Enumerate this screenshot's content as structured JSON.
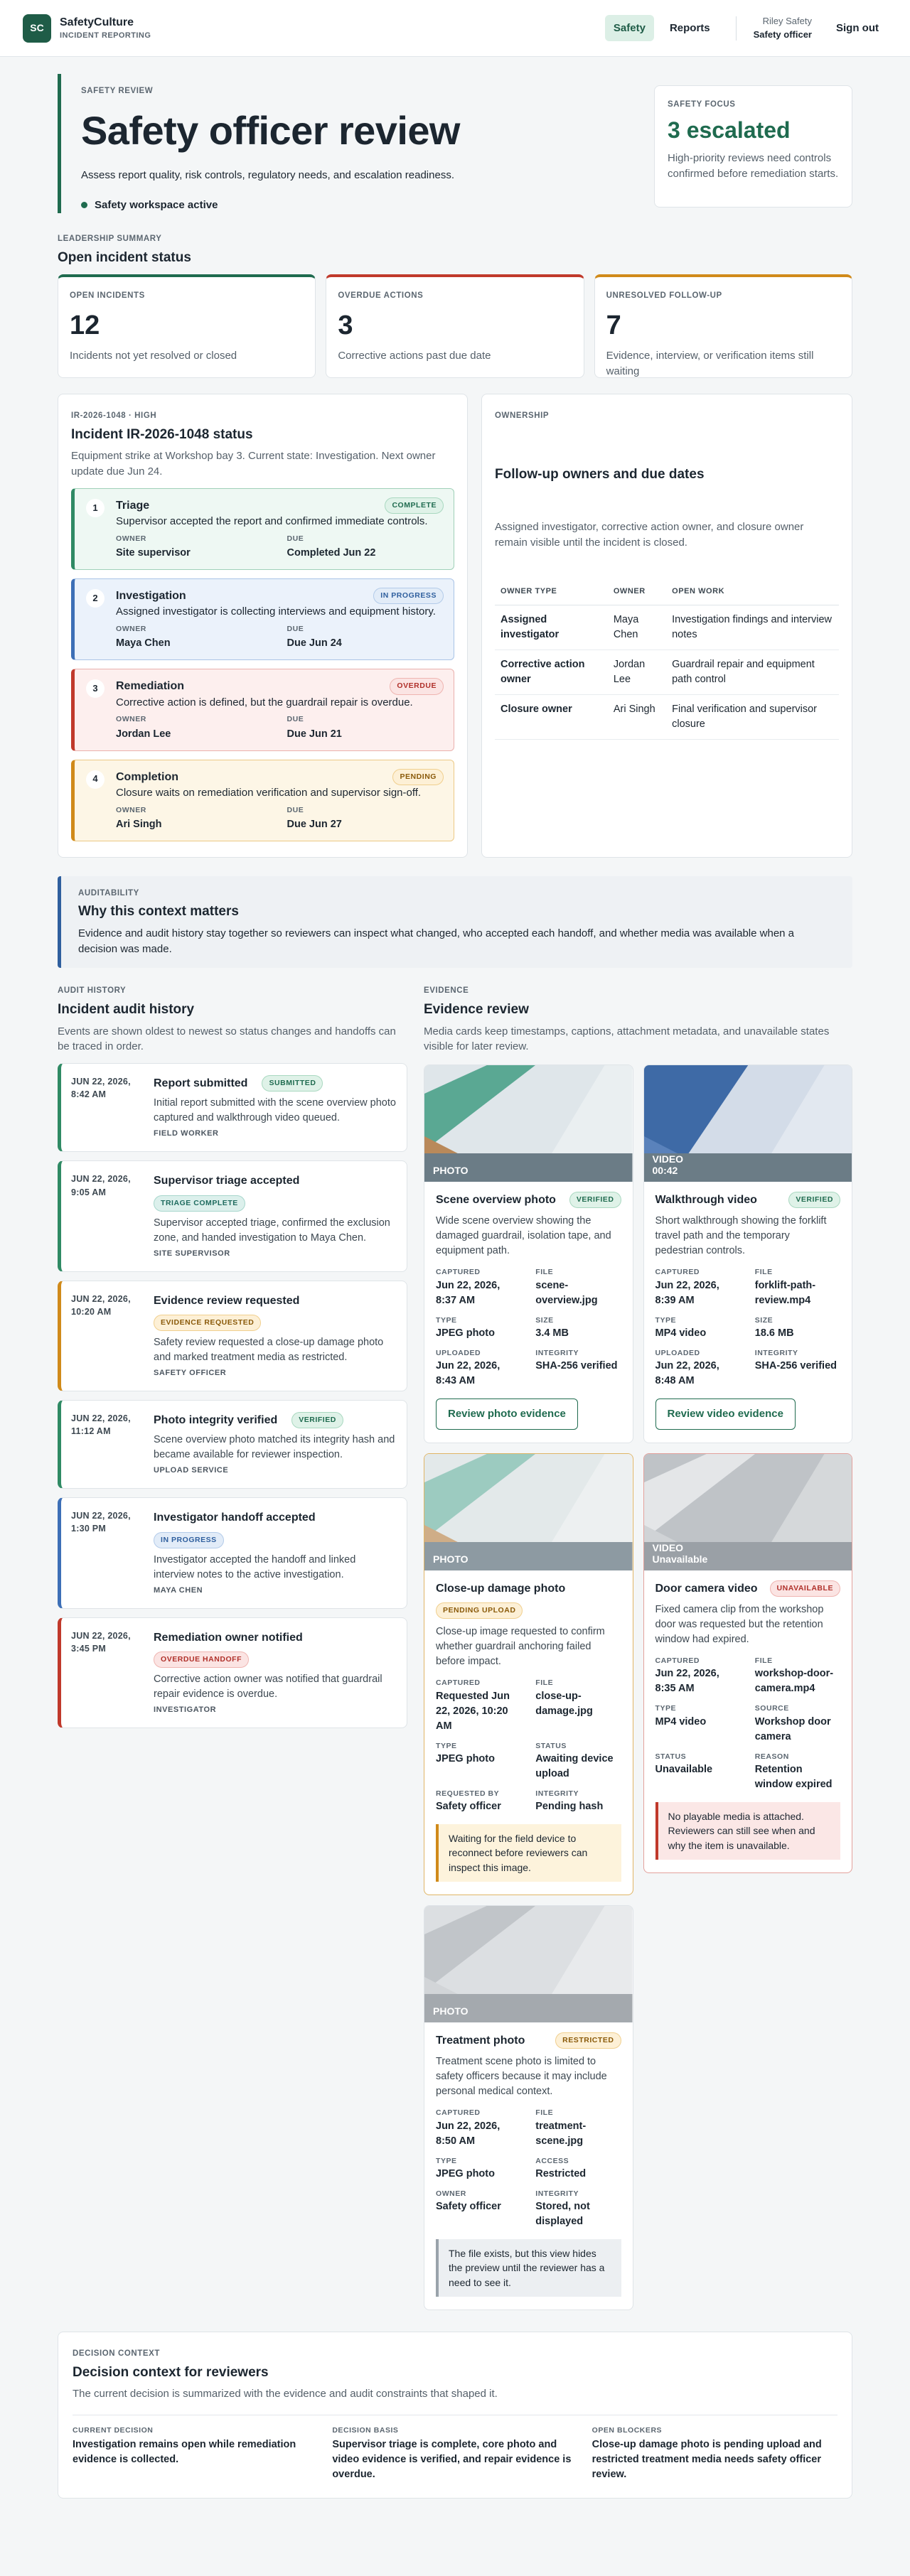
{
  "header": {
    "logo": "SC",
    "brand": "SafetyCulture",
    "subtitle": "INCIDENT REPORTING",
    "nav": [
      "Safety",
      "Reports"
    ],
    "user_name": "Riley Safety",
    "user_role": "Safety officer",
    "sign_out": "Sign out"
  },
  "hero": {
    "eyebrow": "SAFETY REVIEW",
    "title": "Safety officer review",
    "description": "Assess report quality, risk controls, regulatory needs, and escalation readiness.",
    "status": "Safety workspace active"
  },
  "focus": {
    "eyebrow": "SAFETY FOCUS",
    "title": "3 escalated",
    "text": "High-priority reviews need controls confirmed before remediation starts."
  },
  "summary": {
    "eyebrow": "LEADERSHIP SUMMARY",
    "title": "Open incident status",
    "cards": [
      {
        "label": "OPEN INCIDENTS",
        "value": 12,
        "text": "Incidents not yet resolved or closed"
      },
      {
        "label": "OVERDUE ACTIONS",
        "value": 3,
        "text": "Corrective actions past due date"
      },
      {
        "label": "UNRESOLVED FOLLOW-UP",
        "value": 7,
        "text": "Evidence, interview, or verification items still waiting"
      }
    ]
  },
  "incident": {
    "eyebrow": "IR-2026-1048 · HIGH",
    "title": "Incident IR-2026-1048 status",
    "description": "Equipment strike at Workshop bay 3. Current state: Investigation. Next owner update due Jun 24.",
    "steps": [
      {
        "num": 1,
        "title": "Triage",
        "badge": "COMPLETE",
        "text": "Supervisor accepted the report and confirmed immediate controls.",
        "owner_label": "OWNER",
        "owner": "Site supervisor",
        "due_label": "DUE",
        "due": "Completed Jun 22"
      },
      {
        "num": 2,
        "title": "Investigation",
        "badge": "IN PROGRESS",
        "text": "Assigned investigator is collecting interviews and equipment history.",
        "owner_label": "OWNER",
        "owner": "Maya Chen",
        "due_label": "DUE",
        "due": "Due Jun 24"
      },
      {
        "num": 3,
        "title": "Remediation",
        "badge": "OVERDUE",
        "text": "Corrective action is defined, but the guardrail repair is overdue.",
        "owner_label": "OWNER",
        "owner": "Jordan Lee",
        "due_label": "DUE",
        "due": "Due Jun 21"
      },
      {
        "num": 4,
        "title": "Completion",
        "badge": "PENDING",
        "text": "Closure waits on remediation verification and supervisor sign-off.",
        "owner_label": "OWNER",
        "owner": "Ari Singh",
        "due_label": "DUE",
        "due": "Due Jun 27"
      }
    ]
  },
  "ownership": {
    "eyebrow": "OWNERSHIP",
    "title": "Follow-up owners and due dates",
    "description": "Assigned investigator, corrective action owner, and closure owner remain visible until the incident is closed.",
    "columns": [
      "OWNER TYPE",
      "OWNER",
      "OPEN WORK"
    ],
    "rows": [
      [
        "Assigned investigator",
        "Maya Chen",
        "Investigation findings and interview notes"
      ],
      [
        "Corrective action owner",
        "Jordan Lee",
        "Guardrail repair and equipment path control"
      ],
      [
        "Closure owner",
        "Ari Singh",
        "Final verification and supervisor closure"
      ]
    ]
  },
  "auditability": {
    "eyebrow": "AUDITABILITY",
    "title": "Why this context matters",
    "text": "Evidence and audit history stay together so reviewers can inspect what changed, who accepted each handoff, and whether media was available when a decision was made."
  },
  "audit": {
    "eyebrow": "AUDIT HISTORY",
    "title": "Incident audit history",
    "description": "Events are shown oldest to newest so status changes and handoffs can be traced in order.",
    "events": [
      {
        "date": "JUN 22, 2026, 8:42 AM",
        "title": "Report submitted",
        "badge": "SUBMITTED",
        "text": "Initial report submitted with the scene overview photo captured and walkthrough video queued.",
        "actor": "FIELD WORKER"
      },
      {
        "date": "JUN 22, 2026, 9:05 AM",
        "title": "Supervisor triage accepted",
        "badge": "TRIAGE COMPLETE",
        "text": "Supervisor accepted triage, confirmed the exclusion zone, and handed investigation to Maya Chen.",
        "actor": "SITE SUPERVISOR"
      },
      {
        "date": "JUN 22, 2026, 10:20 AM",
        "title": "Evidence review requested",
        "badge": "EVIDENCE REQUESTED",
        "text": "Safety review requested a close-up damage photo and marked treatment media as restricted.",
        "actor": "SAFETY OFFICER"
      },
      {
        "date": "JUN 22, 2026, 11:12 AM",
        "title": "Photo integrity verified",
        "badge": "VERIFIED",
        "text": "Scene overview photo matched its integrity hash and became available for reviewer inspection.",
        "actor": "UPLOAD SERVICE"
      },
      {
        "date": "JUN 22, 2026, 1:30 PM",
        "title": "Investigator handoff accepted",
        "badge": "IN PROGRESS",
        "text": "Investigator accepted the handoff and linked interview notes to the active investigation.",
        "actor": "MAYA CHEN"
      },
      {
        "date": "JUN 22, 2026, 3:45 PM",
        "title": "Remediation owner notified",
        "badge": "OVERDUE HANDOFF",
        "text": "Corrective action owner was notified that guardrail repair evidence is overdue.",
        "actor": "INVESTIGATOR"
      }
    ]
  },
  "evidence": {
    "eyebrow": "EVIDENCE",
    "title": "Evidence review",
    "description": "Media cards keep timestamps, captions, attachment metadata, and unavailable states visible for later review.",
    "items": [
      {
        "media": [
          "PHOTO"
        ],
        "title": "Scene overview photo",
        "badge": "VERIFIED",
        "text": "Wide scene overview showing the damaged guardrail, isolation tape, and equipment path.",
        "fields": [
          {
            "label": "CAPTURED",
            "value": "Jun 22, 2026, 8:37 AM"
          },
          {
            "label": "FILE",
            "value": "scene-overview.jpg"
          },
          {
            "label": "TYPE",
            "value": "JPEG photo"
          },
          {
            "label": "SIZE",
            "value": "3.4 MB"
          },
          {
            "label": "UPLOADED",
            "value": "Jun 22, 2026, 8:43 AM"
          },
          {
            "label": "INTEGRITY",
            "value": "SHA-256 verified"
          }
        ],
        "button": "Review photo evidence"
      },
      {
        "media": [
          "VIDEO",
          "00:42"
        ],
        "title": "Walkthrough video",
        "badge": "VERIFIED",
        "text": "Short walkthrough showing the forklift travel path and the temporary pedestrian controls.",
        "fields": [
          {
            "label": "CAPTURED",
            "value": "Jun 22, 2026, 8:39 AM"
          },
          {
            "label": "FILE",
            "value": "forklift-path-review.mp4"
          },
          {
            "label": "TYPE",
            "value": "MP4 video"
          },
          {
            "label": "SIZE",
            "value": "18.6 MB"
          },
          {
            "label": "UPLOADED",
            "value": "Jun 22, 2026, 8:48 AM"
          },
          {
            "label": "INTEGRITY",
            "value": "SHA-256 verified"
          }
        ],
        "button": "Review video evidence"
      },
      {
        "media": [
          "PHOTO"
        ],
        "title": "Close-up damage photo",
        "badge": "PENDING UPLOAD",
        "text": "Close-up image requested to confirm whether guardrail anchoring failed before impact.",
        "fields": [
          {
            "label": "CAPTURED",
            "value": "Requested Jun 22, 2026, 10:20 AM"
          },
          {
            "label": "FILE",
            "value": "close-up-damage.jpg"
          },
          {
            "label": "TYPE",
            "value": "JPEG photo"
          },
          {
            "label": "STATUS",
            "value": "Awaiting device upload"
          },
          {
            "label": "REQUESTED BY",
            "value": "Safety officer"
          },
          {
            "label": "INTEGRITY",
            "value": "Pending hash"
          }
        ],
        "note": "Waiting for the field device to reconnect before reviewers can inspect this image."
      },
      {
        "media": [
          "VIDEO",
          "Unavailable"
        ],
        "title": "Door camera video",
        "badge": "UNAVAILABLE",
        "text": "Fixed camera clip from the workshop door was requested but the retention window had expired.",
        "fields": [
          {
            "label": "CAPTURED",
            "value": "Jun 22, 2026, 8:35 AM"
          },
          {
            "label": "FILE",
            "value": "workshop-door-camera.mp4"
          },
          {
            "label": "TYPE",
            "value": "MP4 video"
          },
          {
            "label": "SOURCE",
            "value": "Workshop door camera"
          },
          {
            "label": "STATUS",
            "value": "Unavailable"
          },
          {
            "label": "REASON",
            "value": "Retention window expired"
          }
        ],
        "note": "No playable media is attached. Reviewers can still see when and why the item is unavailable."
      },
      {
        "media": [
          "PHOTO"
        ],
        "title": "Treatment photo",
        "badge": "RESTRICTED",
        "text": "Treatment scene photo is limited to safety officers because it may include personal medical context.",
        "fields": [
          {
            "label": "CAPTURED",
            "value": "Jun 22, 2026, 8:50 AM"
          },
          {
            "label": "FILE",
            "value": "treatment-scene.jpg"
          },
          {
            "label": "TYPE",
            "value": "JPEG photo"
          },
          {
            "label": "ACCESS",
            "value": "Restricted"
          },
          {
            "label": "OWNER",
            "value": "Safety officer"
          },
          {
            "label": "INTEGRITY",
            "value": "Stored, not displayed"
          }
        ],
        "note": "The file exists, but this view hides the preview until the reviewer has a need to see it."
      }
    ]
  },
  "decision": {
    "eyebrow": "DECISION CONTEXT",
    "title": "Decision context for reviewers",
    "description": "The current decision is summarized with the evidence and audit constraints that shaped it.",
    "items": [
      {
        "label": "CURRENT DECISION",
        "value": "Investigation remains open while remediation evidence is collected."
      },
      {
        "label": "DECISION BASIS",
        "value": "Supervisor triage is complete, core photo and video evidence is verified, and repair evidence is overdue."
      },
      {
        "label": "OPEN BLOCKERS",
        "value": "Close-up damage photo is pending upload and restricted treatment media needs safety officer review."
      }
    ]
  }
}
